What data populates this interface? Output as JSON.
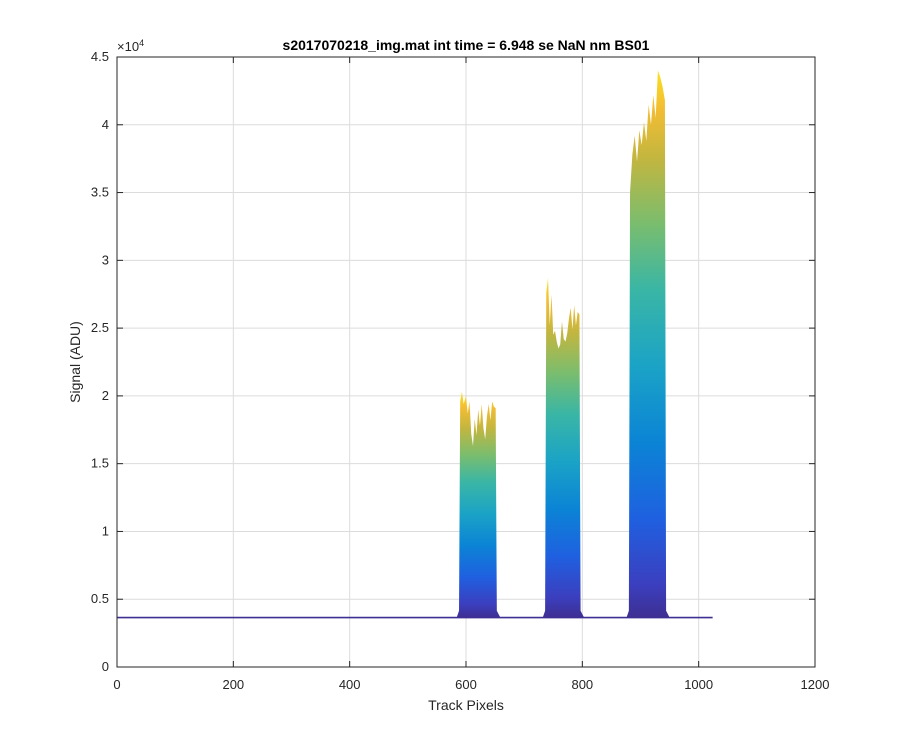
{
  "chart_data": {
    "type": "area",
    "title": "s2017070218_img.mat int time = 6.948 se  NaN nm BS01",
    "xlabel": "Track Pixels",
    "ylabel": "Signal (ADU)",
    "xlim": [
      0,
      1200
    ],
    "ylim": [
      0,
      45000
    ],
    "x_ticks": [
      "0",
      "200",
      "400",
      "600",
      "800",
      "1000",
      "1200"
    ],
    "y_ticks": [
      "0",
      "0.5",
      "1",
      "1.5",
      "2",
      "2.5",
      "3",
      "3.5",
      "4",
      "4.5"
    ],
    "y_exponent_label": "×10",
    "y_exponent_power": "4",
    "grid": true,
    "colormap": "parula",
    "baseline": 3650,
    "x_extent": [
      0,
      1024
    ],
    "series": [
      {
        "x": [
          590,
          593,
          596,
          600,
          603,
          606,
          609,
          612,
          615,
          618,
          621,
          624,
          627,
          630,
          633,
          636,
          639,
          642,
          645,
          648,
          651
        ],
        "y": [
          19600,
          20300,
          19400,
          20000,
          18700,
          19600,
          17200,
          16300,
          18300,
          17100,
          19000,
          17800,
          19400,
          17600,
          16800,
          18500,
          19400,
          18200,
          19600,
          19200,
          19100
        ]
      },
      {
        "x": [
          738,
          741,
          744,
          747,
          750,
          753,
          756,
          759,
          762,
          765,
          768,
          771,
          774,
          777,
          780,
          783,
          786,
          789,
          792,
          795
        ],
        "y": [
          27600,
          28700,
          25200,
          27500,
          24500,
          24800,
          24000,
          23500,
          23800,
          25500,
          24200,
          24000,
          24600,
          25700,
          26500,
          24900,
          26700,
          25200,
          26200,
          26000
        ]
      },
      {
        "x": [
          882,
          886,
          890,
          894,
          898,
          902,
          906,
          910,
          914,
          918,
          922,
          926,
          930,
          934,
          938,
          942
        ],
        "y": [
          35000,
          37800,
          39200,
          37300,
          39600,
          38500,
          40200,
          38800,
          41500,
          40000,
          42200,
          40500,
          44000,
          43500,
          42800,
          41800
        ]
      }
    ]
  }
}
